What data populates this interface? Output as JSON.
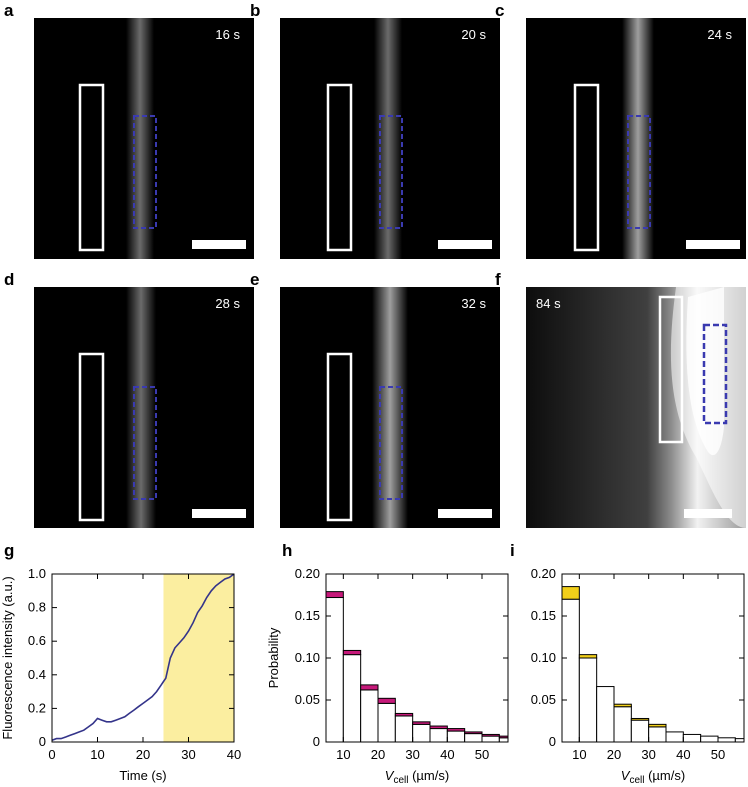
{
  "panels": {
    "a": {
      "letter": "a",
      "time": "16 s"
    },
    "b": {
      "letter": "b",
      "time": "20 s"
    },
    "c": {
      "letter": "c",
      "time": "24 s"
    },
    "d": {
      "letter": "d",
      "time": "28 s"
    },
    "e": {
      "letter": "e",
      "time": "32 s"
    },
    "f": {
      "letter": "f",
      "time": "84 s"
    },
    "g": {
      "letter": "g"
    },
    "h": {
      "letter": "h"
    },
    "i": {
      "letter": "i"
    }
  },
  "colors": {
    "line": "#34348a",
    "highlight": "#fbeea0",
    "magenta": "#c6197a",
    "yellow": "#f1cf1a",
    "roi_solid": "#ffffff",
    "roi_dashed": "#3a3ab0"
  },
  "chart_data": [
    {
      "type": "line",
      "panel": "g",
      "xlabel": "Time (s)",
      "ylabel": "Fluorescence intensity (a.u.)",
      "xlim": [
        0,
        40
      ],
      "ylim": [
        0,
        1.0
      ],
      "xticks": [
        "0",
        "10",
        "20",
        "30",
        "40"
      ],
      "yticks": [
        "0",
        "0.2",
        "0.4",
        "0.6",
        "0.8",
        "1.0"
      ],
      "highlight_range": [
        24.5,
        40
      ],
      "x": [
        0,
        1,
        2,
        3,
        4,
        5,
        6,
        7,
        8,
        9,
        10,
        11,
        12,
        13,
        14,
        15,
        16,
        17,
        18,
        19,
        20,
        21,
        22,
        23,
        24,
        24.5,
        25,
        26,
        27,
        28,
        29,
        30,
        31,
        32,
        33,
        34,
        35,
        36,
        37,
        38,
        39,
        40
      ],
      "y": [
        0.01,
        0.02,
        0.02,
        0.03,
        0.04,
        0.05,
        0.06,
        0.07,
        0.09,
        0.11,
        0.14,
        0.13,
        0.12,
        0.12,
        0.13,
        0.14,
        0.15,
        0.17,
        0.19,
        0.21,
        0.23,
        0.25,
        0.27,
        0.3,
        0.34,
        0.36,
        0.38,
        0.5,
        0.56,
        0.59,
        0.62,
        0.66,
        0.71,
        0.77,
        0.81,
        0.86,
        0.9,
        0.93,
        0.95,
        0.97,
        0.98,
        1.0
      ]
    },
    {
      "type": "bar",
      "panel": "h",
      "stacked": true,
      "ylabel": "Probability",
      "xlabel_main": "V",
      "xlabel_sub": "cell",
      "xlabel_unit": " (µm/s)",
      "xlim": [
        5,
        57.5
      ],
      "ylim": [
        0,
        0.2
      ],
      "xticks": [
        "10",
        "20",
        "30",
        "40",
        "50"
      ],
      "yticks": [
        "0",
        "0.05",
        "0.10",
        "0.15",
        "0.20"
      ],
      "bin_starts": [
        5,
        10,
        15,
        20,
        25,
        30,
        35,
        40,
        45,
        50,
        55
      ],
      "bin_width": 5,
      "series": [
        {
          "name": "base",
          "values": [
            0.172,
            0.104,
            0.062,
            0.046,
            0.031,
            0.021,
            0.016,
            0.013,
            0.01,
            0.007,
            0.005
          ]
        },
        {
          "name": "top",
          "values": [
            0.007,
            0.005,
            0.006,
            0.006,
            0.003,
            0.003,
            0.003,
            0.003,
            0.002,
            0.002,
            0.002
          ]
        }
      ]
    },
    {
      "type": "bar",
      "panel": "i",
      "stacked": true,
      "xlabel_main": "V",
      "xlabel_sub": "cell",
      "xlabel_unit": " (µm/s)",
      "xlim": [
        5,
        57.5
      ],
      "ylim": [
        0,
        0.2
      ],
      "xticks": [
        "10",
        "20",
        "30",
        "40",
        "50"
      ],
      "yticks": [
        "0",
        "0.05",
        "0.10",
        "0.15",
        "0.20"
      ],
      "bin_starts": [
        5,
        10,
        15,
        20,
        25,
        30,
        35,
        40,
        45,
        50,
        55
      ],
      "bin_width": 5,
      "series": [
        {
          "name": "base",
          "values": [
            0.17,
            0.1,
            0.066,
            0.042,
            0.026,
            0.018,
            0.012,
            0.009,
            0.007,
            0.005,
            0.004
          ]
        },
        {
          "name": "top",
          "values": [
            0.015,
            0.004,
            0.0,
            0.003,
            0.002,
            0.003,
            0.0,
            0.0,
            0.0,
            0.0,
            0.0
          ]
        }
      ]
    }
  ]
}
